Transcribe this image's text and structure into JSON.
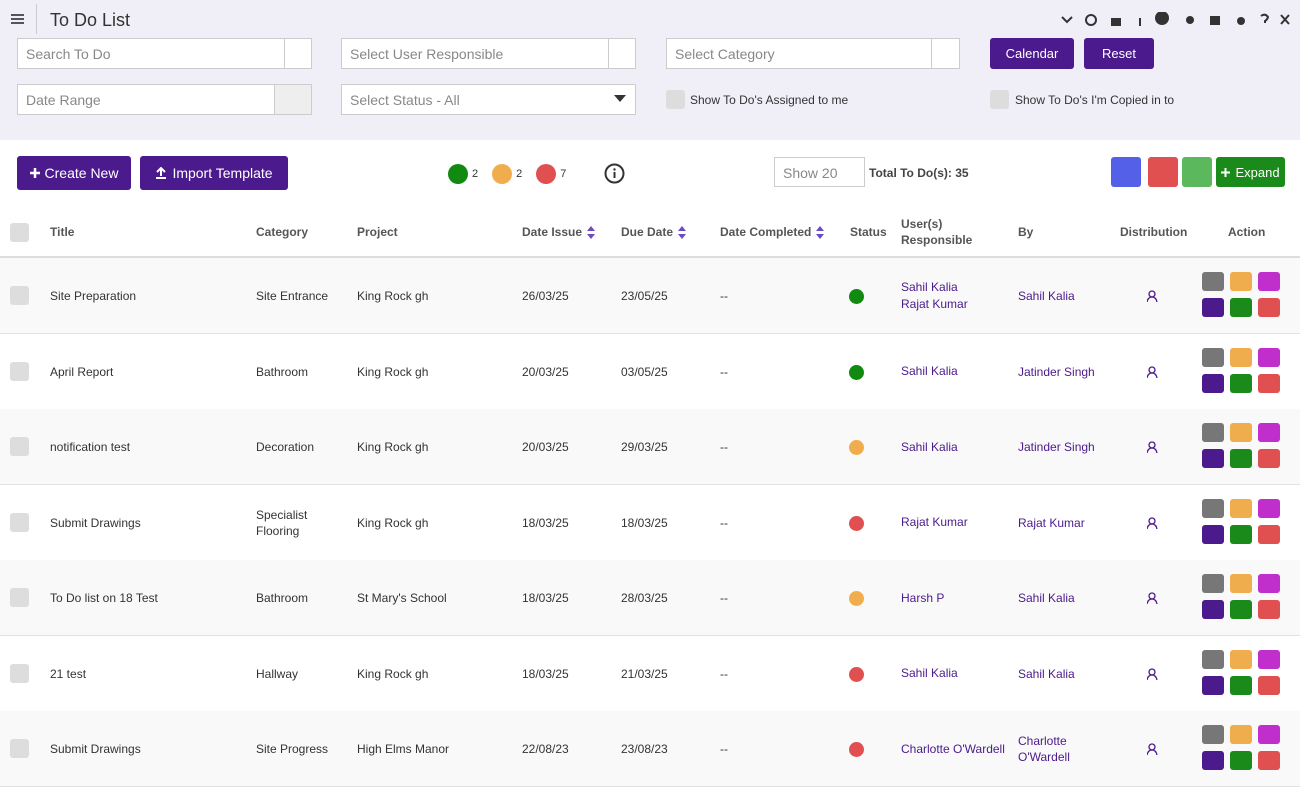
{
  "header": {
    "title": "To Do List"
  },
  "filters": {
    "search": "Search To Do",
    "user": "Select User Responsible",
    "category": "Select Category",
    "calendar": "Calendar",
    "reset": "Reset",
    "date_range": "Date Range",
    "status": "Select Status - All",
    "assigned": "Show To Do's Assigned to me",
    "copied": "Show To Do's I'm Copied in to"
  },
  "toolbar": {
    "create": "Create New",
    "import": "Import Template",
    "counts": [
      {
        "color": "#118a11",
        "count": 2
      },
      {
        "color": "#f0ad4e",
        "count": 2
      },
      {
        "color": "#e05050",
        "count": 7
      }
    ],
    "show": "Show 20",
    "total_label": "Total To Do(s):",
    "total": 35,
    "expand": "Expand"
  },
  "table": {
    "columns": [
      {
        "label": "Title",
        "sortable": false
      },
      {
        "label": "Category",
        "sortable": false
      },
      {
        "label": "Project",
        "sortable": false
      },
      {
        "label": "Date Issue",
        "sortable": true
      },
      {
        "label": "Due Date",
        "sortable": true
      },
      {
        "label": "Date Completed",
        "sortable": true
      },
      {
        "label": "Status",
        "sortable": false
      },
      {
        "label": "User(s) Responsible",
        "sortable": false
      },
      {
        "label": "By",
        "sortable": false
      },
      {
        "label": "Distribution",
        "sortable": false
      },
      {
        "label": "Action",
        "sortable": false
      }
    ],
    "rows": [
      {
        "title": "Site Preparation",
        "category": "Site Entrance",
        "project": "King Rock gh",
        "issue": "26/03/25",
        "due": "23/05/25",
        "completed": "--",
        "status": "#118a11",
        "users": [
          "Sahil Kalia",
          "Rajat Kumar"
        ],
        "by": "Sahil Kalia"
      },
      {
        "title": "April Report",
        "category": "Bathroom",
        "project": "King Rock gh",
        "issue": "20/03/25",
        "due": "03/05/25",
        "completed": "--",
        "status": "#118a11",
        "users": [
          "Sahil Kalia"
        ],
        "by": "Jatinder Singh"
      },
      {
        "title": "notification test",
        "category": "Decoration",
        "project": "King Rock gh",
        "issue": "20/03/25",
        "due": "29/03/25",
        "completed": "--",
        "status": "#f0ad4e",
        "users": [
          "Sahil Kalia"
        ],
        "by": "Jatinder Singh"
      },
      {
        "title": "Submit Drawings",
        "category": "Specialist Flooring",
        "project": "King Rock gh",
        "issue": "18/03/25",
        "due": "18/03/25",
        "completed": "--",
        "status": "#e05050",
        "users": [
          "Rajat Kumar"
        ],
        "by": "Rajat Kumar"
      },
      {
        "title": "To Do list on 18 Test",
        "category": "Bathroom",
        "project": "St Mary's School",
        "issue": "18/03/25",
        "due": "28/03/25",
        "completed": "--",
        "status": "#f0ad4e",
        "users": [
          "Harsh P"
        ],
        "by": "Sahil Kalia"
      },
      {
        "title": "21 test",
        "category": "Hallway",
        "project": "King Rock gh",
        "issue": "18/03/25",
        "due": "21/03/25",
        "completed": "--",
        "status": "#e05050",
        "users": [
          "Sahil Kalia"
        ],
        "by": "Sahil Kalia"
      },
      {
        "title": "Submit Drawings",
        "category": "Site Progress",
        "project": "High Elms Manor",
        "issue": "22/08/23",
        "due": "23/08/23",
        "completed": "--",
        "status": "#e05050",
        "users": [
          "Charlotte O'Wardell"
        ],
        "by": "Charlotte O'Wardell"
      }
    ]
  }
}
